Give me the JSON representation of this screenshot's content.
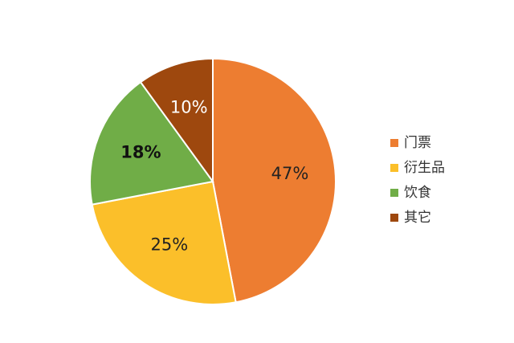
{
  "chart_data": {
    "type": "pie",
    "categories": [
      "门票",
      "衍生品",
      "饮食",
      "其它"
    ],
    "values": [
      47,
      25,
      18,
      10
    ],
    "value_labels": [
      "47%",
      "25%",
      "18%",
      "10%"
    ],
    "colors": [
      "#ED7D31",
      "#FBBF2A",
      "#70AD47",
      "#9E480E"
    ],
    "legend": "right"
  }
}
